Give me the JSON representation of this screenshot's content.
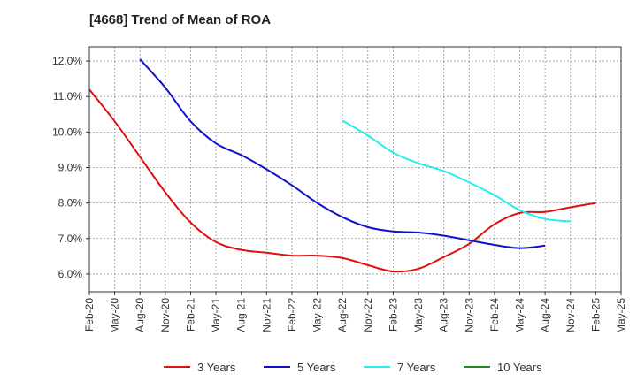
{
  "chart_data": {
    "type": "line",
    "title": "[4668]  Trend of Mean of ROA",
    "xlabel": "",
    "ylabel": "",
    "ylim": [
      5.5,
      12.4
    ],
    "y_ticks": [
      6.0,
      7.0,
      8.0,
      9.0,
      10.0,
      11.0,
      12.0
    ],
    "y_tick_labels": [
      "6.0%",
      "7.0%",
      "8.0%",
      "9.0%",
      "10.0%",
      "11.0%",
      "12.0%"
    ],
    "x_tick_labels": [
      "Feb-20",
      "May-20",
      "Aug-20",
      "Nov-20",
      "Feb-21",
      "May-21",
      "Aug-21",
      "Nov-21",
      "Feb-22",
      "May-22",
      "Aug-22",
      "Nov-22",
      "Feb-23",
      "May-23",
      "Aug-23",
      "Nov-23",
      "Feb-24",
      "May-24",
      "Aug-24",
      "Nov-24",
      "Feb-25",
      "May-25"
    ],
    "grid": true,
    "legend_position": "bottom",
    "series": [
      {
        "name": "3 Years",
        "color": "#dd1111",
        "start_index": 0,
        "values": [
          11.2,
          10.3,
          9.3,
          8.3,
          7.45,
          6.9,
          6.68,
          6.6,
          6.52,
          6.52,
          6.45,
          6.25,
          6.07,
          6.15,
          6.48,
          6.85,
          7.4,
          7.72,
          7.75,
          7.88,
          8.0
        ]
      },
      {
        "name": "5 Years",
        "color": "#1111cc",
        "start_index": 2,
        "values": [
          12.05,
          11.25,
          10.3,
          9.68,
          9.35,
          8.95,
          8.5,
          8.0,
          7.6,
          7.32,
          7.2,
          7.17,
          7.08,
          6.95,
          6.82,
          6.73,
          6.8
        ]
      },
      {
        "name": "7 Years",
        "color": "#22eeee",
        "start_index": 10,
        "values": [
          10.32,
          9.9,
          9.42,
          9.12,
          8.9,
          8.58,
          8.22,
          7.8,
          7.55,
          7.48
        ]
      },
      {
        "name": "10 Years",
        "color": "#228822",
        "start_index": 0,
        "values": []
      }
    ]
  }
}
